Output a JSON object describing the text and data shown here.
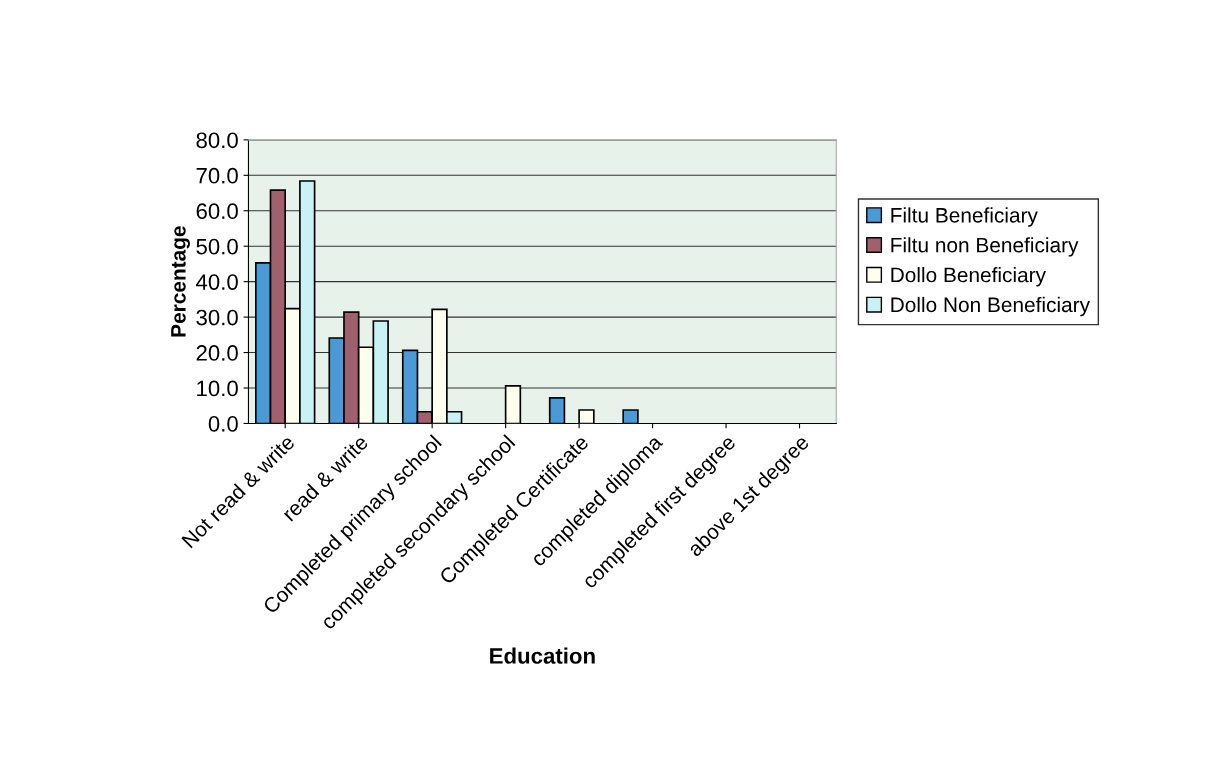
{
  "chart_data": {
    "type": "bar",
    "xlabel": "Education",
    "ylabel": "Percentage",
    "categories": [
      "Not read & write",
      "read & write",
      "Completed primary school",
      "completed secondary school",
      "Completed Certificate",
      "completed diploma",
      "completed first degree",
      "above 1st degree"
    ],
    "series": [
      {
        "name": "Filtu Beneficiary",
        "color": "#4a9ad8",
        "values": [
          45.3,
          24.1,
          20.6,
          0,
          7.2,
          3.8,
          0,
          0
        ]
      },
      {
        "name": "Filtu non Beneficiary",
        "color": "#a0606e",
        "values": [
          65.8,
          31.4,
          3.3,
          0,
          0,
          0,
          0,
          0
        ]
      },
      {
        "name": "Dollo Beneficiary",
        "color": "#fffff0",
        "values": [
          32.4,
          21.5,
          32.2,
          10.6,
          3.8,
          0,
          0,
          0
        ]
      },
      {
        "name": "Dollo Non Beneficiary",
        "color": "#c8f2f4",
        "values": [
          68.4,
          28.9,
          3.3,
          0,
          0,
          0,
          0,
          0
        ]
      }
    ],
    "ylim": [
      0,
      80
    ],
    "yticks": [
      {
        "value": 0,
        "label": "0.0"
      },
      {
        "value": 10,
        "label": "10.0"
      },
      {
        "value": 20,
        "label": "20.0"
      },
      {
        "value": 30,
        "label": "30.0"
      },
      {
        "value": 40,
        "label": "40.0"
      },
      {
        "value": 50,
        "label": "50.0"
      },
      {
        "value": 60,
        "label": "60.0"
      },
      {
        "value": 70,
        "label": "70.0"
      },
      {
        "value": 80,
        "label": "80.0"
      }
    ],
    "grid": "y",
    "legend": "right"
  }
}
